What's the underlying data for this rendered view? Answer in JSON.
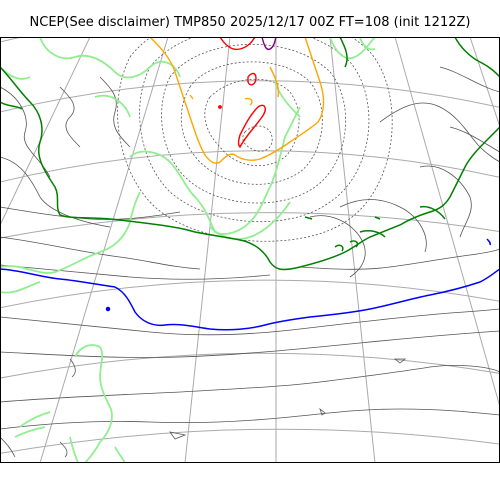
{
  "title": "NCEP(See disclaimer) TMP850 2025/12/17 00Z FT=108 (init 1212Z)",
  "colors": {
    "grid": "#aaaaaa",
    "contour": "#555555",
    "isotherm_light_green": "#90ee90",
    "isotherm_green": "#008000",
    "isotherm_blue": "#0000ff",
    "isotherm_orange": "#ffa500",
    "isotherm_red": "#ff0000",
    "isotherm_purple": "#800080",
    "frame": "#000000"
  }
}
